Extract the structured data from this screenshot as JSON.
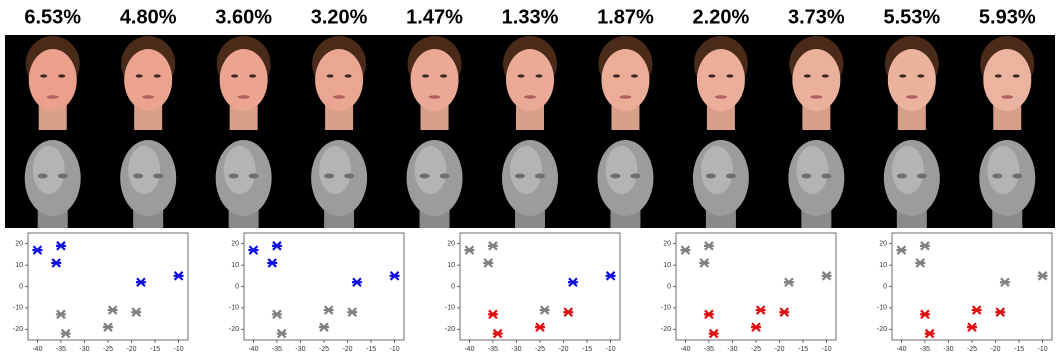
{
  "percentages": [
    "6.53%",
    "4.80%",
    "3.60%",
    "3.20%",
    "1.47%",
    "1.33%",
    "1.87%",
    "2.20%",
    "3.73%",
    "5.53%",
    "5.93%"
  ],
  "plots": [
    {
      "xlim": [
        -42,
        -8
      ],
      "ylim": [
        -25,
        25
      ],
      "xticks": [
        -40,
        -35,
        -30,
        -25,
        -20,
        -15,
        -10
      ],
      "yticks": [
        -20,
        -10,
        0,
        10,
        20
      ],
      "x": [
        -40,
        -35,
        -36,
        -18,
        -10,
        -35,
        -34,
        -24,
        -25,
        -19
      ],
      "y": [
        17,
        19,
        11,
        2,
        5,
        -13,
        -22,
        -11,
        -19,
        -12
      ],
      "colors": [
        "#1010e0",
        "#1010e0",
        "#1010e0",
        "#1010e0",
        "#1010e0",
        "#808080",
        "#808080",
        "#808080",
        "#808080",
        "#808080"
      ]
    },
    {
      "xlim": [
        -42,
        -8
      ],
      "ylim": [
        -25,
        25
      ],
      "xticks": [
        -40,
        -35,
        -30,
        -25,
        -20,
        -15,
        -10
      ],
      "yticks": [
        -20,
        -10,
        0,
        10,
        20
      ],
      "x": [
        -40,
        -35,
        -36,
        -18,
        -10,
        -35,
        -34,
        -24,
        -25,
        -19
      ],
      "y": [
        17,
        19,
        11,
        2,
        5,
        -13,
        -22,
        -11,
        -19,
        -12
      ],
      "colors": [
        "#1010e0",
        "#1010e0",
        "#1010e0",
        "#1010e0",
        "#1010e0",
        "#808080",
        "#808080",
        "#808080",
        "#808080",
        "#808080"
      ]
    },
    {
      "xlim": [
        -42,
        -8
      ],
      "ylim": [
        -25,
        25
      ],
      "xticks": [
        -40,
        -35,
        -30,
        -25,
        -20,
        -15,
        -10
      ],
      "yticks": [
        -20,
        -10,
        0,
        10,
        20
      ],
      "x": [
        -40,
        -35,
        -36,
        -18,
        -10,
        -35,
        -34,
        -24,
        -25,
        -19
      ],
      "y": [
        17,
        19,
        11,
        2,
        5,
        -13,
        -22,
        -11,
        -19,
        -12
      ],
      "colors": [
        "#808080",
        "#808080",
        "#808080",
        "#1010e0",
        "#1010e0",
        "#e01010",
        "#e01010",
        "#808080",
        "#e01010",
        "#e01010"
      ]
    },
    {
      "xlim": [
        -42,
        -8
      ],
      "ylim": [
        -25,
        25
      ],
      "xticks": [
        -40,
        -35,
        -30,
        -25,
        -20,
        -15,
        -10
      ],
      "yticks": [
        -20,
        -10,
        0,
        10,
        20
      ],
      "x": [
        -40,
        -35,
        -36,
        -18,
        -10,
        -35,
        -34,
        -24,
        -25,
        -19
      ],
      "y": [
        17,
        19,
        11,
        2,
        5,
        -13,
        -22,
        -11,
        -19,
        -12
      ],
      "colors": [
        "#808080",
        "#808080",
        "#808080",
        "#808080",
        "#808080",
        "#e01010",
        "#e01010",
        "#e01010",
        "#e01010",
        "#e01010"
      ]
    },
    {
      "xlim": [
        -42,
        -8
      ],
      "ylim": [
        -25,
        25
      ],
      "xticks": [
        -40,
        -35,
        -30,
        -25,
        -20,
        -15,
        -10
      ],
      "yticks": [
        -20,
        -10,
        0,
        10,
        20
      ],
      "x": [
        -40,
        -35,
        -36,
        -18,
        -10,
        -35,
        -34,
        -24,
        -25,
        -19
      ],
      "y": [
        17,
        19,
        11,
        2,
        5,
        -13,
        -22,
        -11,
        -19,
        -12
      ],
      "colors": [
        "#808080",
        "#808080",
        "#808080",
        "#808080",
        "#808080",
        "#e01010",
        "#e01010",
        "#e01010",
        "#e01010",
        "#e01010"
      ]
    }
  ]
}
